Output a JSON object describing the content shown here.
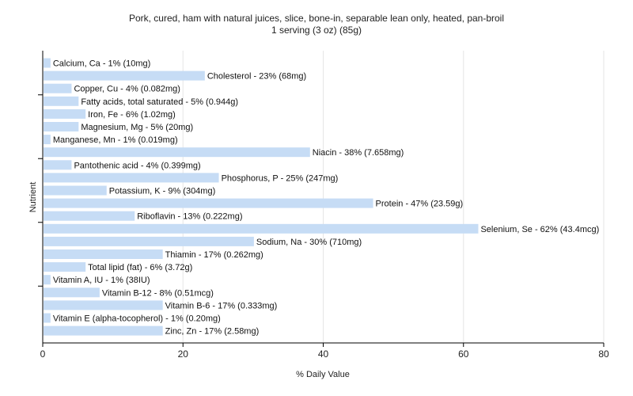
{
  "chart_data": {
    "type": "bar",
    "orientation": "horizontal",
    "title": "Pork, cured, ham with natural juices, slice, bone-in, separable lean only, heated, pan-broil",
    "subtitle": "1 serving (3 oz) (85g)",
    "xlabel": "% Daily Value",
    "ylabel": "Nutrient",
    "xlim": [
      0,
      80
    ],
    "xticks": [
      "0",
      "20",
      "40",
      "60",
      "80"
    ],
    "grid": "vertical",
    "bar_color": "#c6dcf5",
    "series": [
      {
        "categories": [
          "Calcium, Ca",
          "Cholesterol",
          "Copper, Cu",
          "Fatty acids, total saturated",
          "Iron, Fe",
          "Magnesium, Mg",
          "Manganese, Mn",
          "Niacin",
          "Pantothenic acid",
          "Phosphorus, P",
          "Potassium, K",
          "Protein",
          "Riboflavin",
          "Selenium, Se",
          "Sodium, Na",
          "Thiamin",
          "Total lipid (fat)",
          "Vitamin A, IU",
          "Vitamin B-12",
          "Vitamin B-6",
          "Vitamin E (alpha-tocopherol)",
          "Zinc, Zn"
        ],
        "values": [
          1,
          23,
          4,
          5,
          6,
          5,
          1,
          38,
          4,
          25,
          9,
          47,
          13,
          62,
          30,
          17,
          6,
          1,
          8,
          17,
          1,
          17
        ],
        "labels": [
          "Calcium, Ca - 1% (10mg)",
          "Cholesterol - 23% (68mg)",
          "Copper, Cu - 4% (0.082mg)",
          "Fatty acids, total saturated - 5% (0.944g)",
          "Iron, Fe - 6% (1.02mg)",
          "Magnesium, Mg - 5% (20mg)",
          "Manganese, Mn - 1% (0.019mg)",
          "Niacin - 38% (7.658mg)",
          "Pantothenic acid - 4% (0.399mg)",
          "Phosphorus, P - 25% (247mg)",
          "Potassium, K - 9% (304mg)",
          "Protein - 47% (23.59g)",
          "Riboflavin - 13% (0.222mg)",
          "Selenium, Se - 62% (43.4mcg)",
          "Sodium, Na - 30% (710mg)",
          "Thiamin - 17% (0.262mg)",
          "Total lipid (fat) - 6% (3.72g)",
          "Vitamin A, IU - 1% (38IU)",
          "Vitamin B-12 - 8% (0.51mcg)",
          "Vitamin B-6 - 17% (0.333mg)",
          "Vitamin E (alpha-tocopherol) - 1% (0.20mg)",
          "Zinc, Zn - 17% (2.58mg)"
        ]
      }
    ]
  }
}
